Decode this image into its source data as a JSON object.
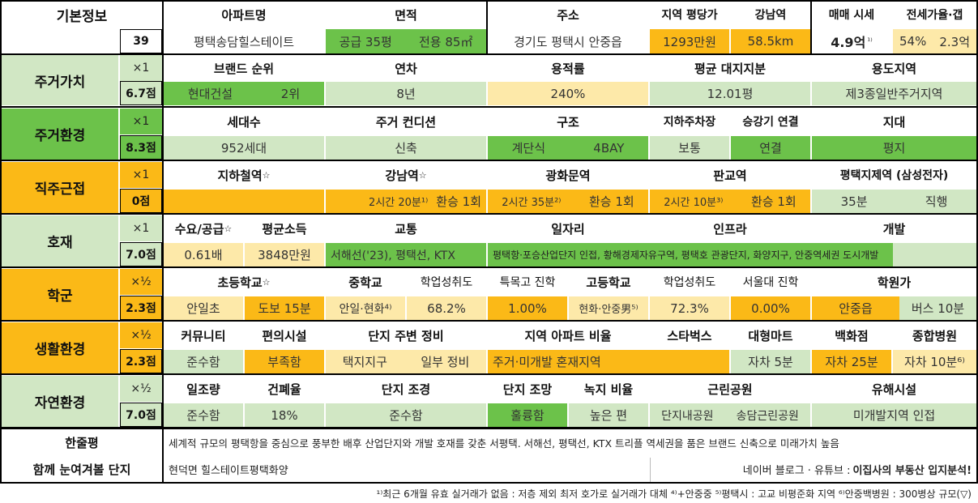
{
  "colors": {
    "light_green": "#d1e7c4",
    "green": "#6cc24a",
    "orange": "#fbb917",
    "light_yellow": "#fde9a9",
    "gray": "#d9d9d9"
  },
  "basic": {
    "label": "기본정보",
    "number": "39",
    "h_apt": "아파트명",
    "h_area": "면적",
    "h_addr": "주소",
    "h_pyeong": "지역 평당가",
    "h_gangnam": "강남역",
    "h_sale": "매매 시세",
    "h_jeonse": "전세가율·갭",
    "apt": "평택송담힐스테이트",
    "area_supply": "공급 35평",
    "area_exclusive": "전용 85㎡",
    "addr": "경기도 평택시 안중읍",
    "pyeong": "1293만원",
    "gangnam": "58.5km",
    "sale": "4.9억",
    "sale_note": "¹⁾",
    "jeonse_ratio": "54%",
    "gap": "2.3억"
  },
  "living_value": {
    "label": "주거가치",
    "mult": "×1",
    "score": "6.7점",
    "h_brand": "브랜드 순위",
    "h_year": "연차",
    "h_far": "용적률",
    "h_land": "평균 대지지분",
    "h_zone": "용도지역",
    "brand": "현대건설",
    "brand_rank": "2위",
    "year": "8년",
    "far": "240%",
    "land": "12.01평",
    "zone": "제3종일반주거지역"
  },
  "living_env": {
    "label": "주거환경",
    "mult": "×1",
    "score": "8.3점",
    "h_households": "세대수",
    "h_condition": "주거 컨디션",
    "h_structure": "구조",
    "h_parking": "지하주차장",
    "h_elevator": "승강기 연결",
    "h_terrain": "지대",
    "households": "952세대",
    "condition": "신축",
    "structure_a": "계단식",
    "structure_b": "4BAY",
    "parking": "보통",
    "elevator": "연결",
    "terrain": "평지"
  },
  "commute": {
    "label": "직주근접",
    "mult": "×1",
    "score": "0점",
    "h_subway": "지하철역",
    "h_gangnam": "강남역",
    "h_gwanghwamun": "광화문역",
    "h_pangyo": "판교역",
    "h_pyeongtaek": "평택지제역 (삼성전자)",
    "star": "☆",
    "gangnam_time": "2시간 20분¹⁾",
    "gangnam_tr": "환승 1회",
    "gwanghwamun_time": "2시간 35분²⁾",
    "gwanghwamun_tr": "환승 1회",
    "pangyo_time": "2시간 10분³⁾",
    "pangyo_tr": "환승 1회",
    "pyeongtaek_time": "35분",
    "pyeongtaek_mode": "직행"
  },
  "development": {
    "label": "호재",
    "mult": "×1",
    "score": "7.0점",
    "h_supply": "수요/공급",
    "h_income": "평균소득",
    "h_traffic": "교통",
    "h_jobs": "일자리",
    "h_infra": "인프라",
    "h_dev": "개발",
    "star": "☆",
    "supply": "0.61배",
    "income": "3848만원",
    "traffic": "서해선('23), 평택선, KTX",
    "jobs_infra": "평택항·포승산업단지 인접, 황해경제자유구역, 평택호 관광단지, 화양지구, 안중역세권 도시개발"
  },
  "school": {
    "label": "학군",
    "mult": "×½",
    "score": "2.3점",
    "h_elem": "초등학교",
    "h_mid": "중학교",
    "h_mid_ach": "학업성취도",
    "h_special": "특목고 진학",
    "h_high": "고등학교",
    "h_high_ach": "학업성취도",
    "h_snu": "서울대 진학",
    "h_academy": "학원가",
    "star": "☆",
    "elem": "안일초",
    "elem_walk": "도보 15분",
    "mid": "안일·현화⁴⁾",
    "mid_ach": "68.2%",
    "special": "1.00%",
    "high": "현화·안중男⁵⁾",
    "high_ach": "72.3%",
    "snu": "0.00%",
    "academy": "안중읍",
    "academy_time": "버스 10분"
  },
  "life_env": {
    "label": "생활환경",
    "mult": "×½",
    "score": "2.3점",
    "h_community": "커뮤니티",
    "h_convenience": "편의시설",
    "h_maintenance": "단지 주변 정비",
    "h_ratio": "지역 아파트 비율",
    "h_starbucks": "스타벅스",
    "h_mart": "대형마트",
    "h_dept": "백화점",
    "h_hospital": "종합병원",
    "community": "준수함",
    "convenience": "부족함",
    "site": "택지지구",
    "maintenance": "일부 정비",
    "ratio": "주거·미개발 혼재지역",
    "starbucks": "",
    "mart": "자차 5분",
    "dept": "자차 25분",
    "hospital": "자차 10분⁶⁾"
  },
  "nature": {
    "label": "자연환경",
    "mult": "×½",
    "score": "7.0점",
    "h_sunlight": "일조량",
    "h_coverage": "건폐율",
    "h_landscape": "단지 조경",
    "h_view": "단지 조망",
    "h_green": "녹지 비율",
    "h_park": "근린공원",
    "h_hazard": "유해시설",
    "sunlight": "준수함",
    "coverage": "18%",
    "landscape": "준수함",
    "view": "훌륭함",
    "green": "높은 편",
    "park_a": "단지내공원",
    "park_b": "송담근린공원",
    "hazard": "미개발지역 인접"
  },
  "summary": {
    "label": "한줄평",
    "text": "세계적 규모의 평택항을 중심으로 풍부한 배후 산업단지와 개발 호재를 갖춘 서평택. 서해선, 평택선, KTX 트리플 역세권을 품은 브랜드 신축으로 미래가치 높음"
  },
  "related": {
    "label": "함께 눈여겨볼 단지",
    "text": "현덕면 힐스테이트평택화양",
    "source": "네이버 블로그 · 유튜브 : ",
    "channel": "이집사의 부동산 입지분석!"
  },
  "footnote": "¹⁾최근 6개월 유효 실거래가 없음 : 저층 제외 최저 호가로 실거래가 대체 ⁴⁾+안중중 ⁵⁾평택시 : 고교 비평준화 지역 ⁶⁾안중백병원 : 300병상 규모(▽)"
}
